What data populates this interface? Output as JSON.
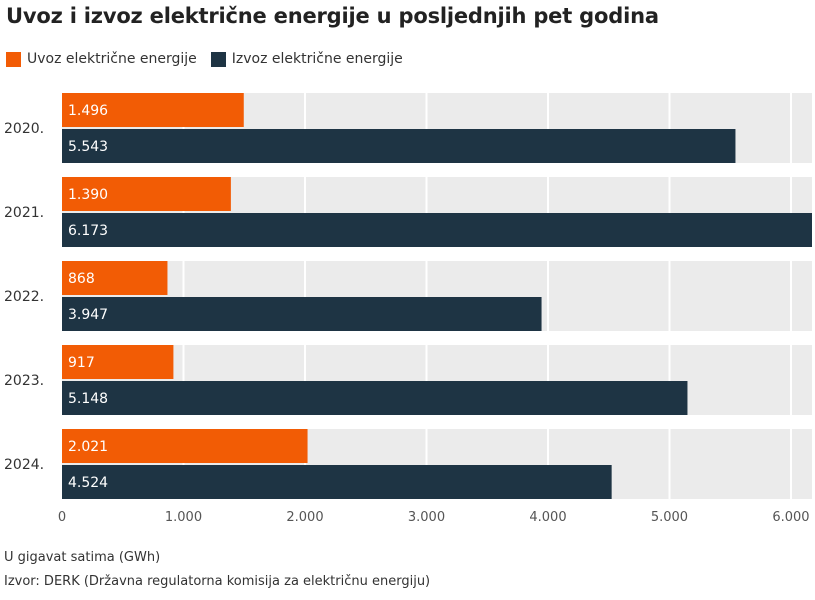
{
  "chart_data": {
    "type": "bar",
    "orientation": "horizontal",
    "title": "Uvoz i izvoz električne energije u posljednjih pet godina",
    "categories": [
      "2020.",
      "2021.",
      "2022.",
      "2023.",
      "2024."
    ],
    "series": [
      {
        "name": "Uvoz električne energije",
        "color": "#f25c05",
        "values": [
          1496,
          1390,
          868,
          917,
          2021
        ],
        "labels": [
          "1.496",
          "1.390",
          "868",
          "917",
          "2.021"
        ]
      },
      {
        "name": "Izvoz električne energije",
        "color": "#1e3444",
        "values": [
          5543,
          6173,
          3947,
          5148,
          4524
        ],
        "labels": [
          "5.543",
          "6.173",
          "3.947",
          "5.148",
          "4.524"
        ]
      }
    ],
    "xlim": [
      0,
      6173
    ],
    "xticks": [
      0,
      1000,
      2000,
      3000,
      4000,
      5000,
      6000
    ],
    "xtick_labels": [
      "0",
      "1.000",
      "2.000",
      "3.000",
      "4.000",
      "5.000",
      "6.000"
    ],
    "grid": true,
    "legend_position": "top-left"
  },
  "footer": {
    "unit": "U gigavat satima (GWh)",
    "source": "Izvor: DERK (Državna regulatorna komisija za električnu energiju)"
  },
  "colors": {
    "band": "#ebebeb",
    "grid": "#ffffff"
  }
}
